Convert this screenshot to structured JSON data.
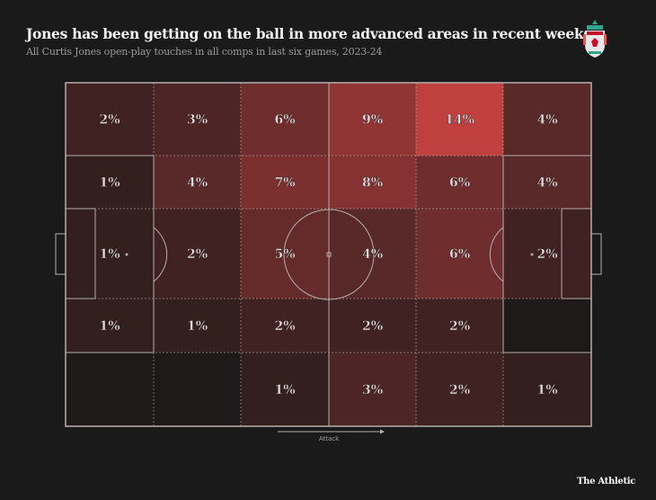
{
  "header": {
    "title": "Jones has been getting on the ball in more advanced areas in recent weeks",
    "subtitle": "All Curtis Jones open-play touches in all comps in last six games, 2023-24",
    "logo_icon": "liverpool-crest-icon"
  },
  "footer": {
    "brand": "The Athletic",
    "direction_label": "Attack"
  },
  "colors": {
    "background": "#1a1a1a",
    "low": "#1e1a1a",
    "high": "#c0403f",
    "lines": "#b5aeae"
  },
  "chart_data": {
    "type": "heatmap",
    "title": "Jones has been getting on the ball in more advanced areas in recent weeks",
    "subtitle": "All Curtis Jones open-play touches in all comps in last six games, 2023-24",
    "xlabel": "Attack",
    "grid": "6 columns x 5 rows over football pitch",
    "columns": 6,
    "rows": 5,
    "values": [
      [
        2,
        3,
        6,
        9,
        14,
        4
      ],
      [
        1,
        4,
        7,
        8,
        6,
        4
      ],
      [
        1,
        2,
        5,
        4,
        6,
        2
      ],
      [
        1,
        1,
        2,
        2,
        2,
        null
      ],
      [
        null,
        null,
        1,
        3,
        2,
        1
      ]
    ],
    "unit": "%"
  }
}
